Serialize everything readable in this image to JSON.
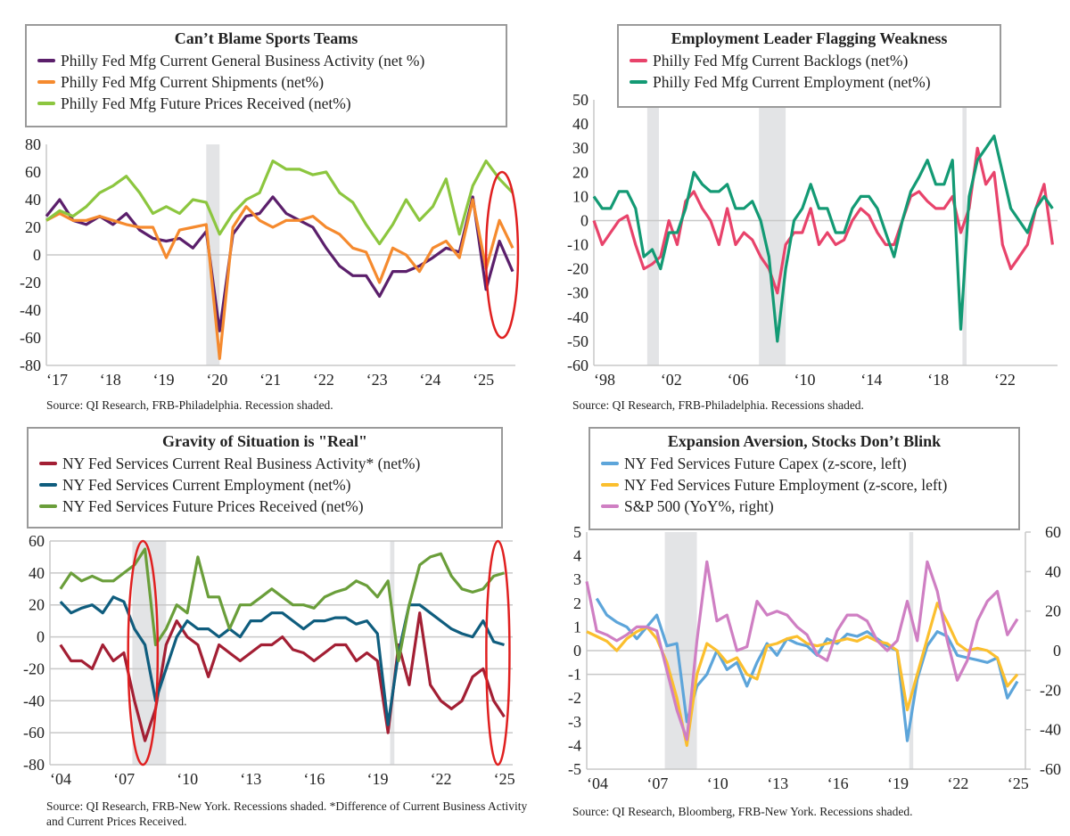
{
  "chart_data": [
    {
      "type": "line",
      "title": "Can’t Blame Sports Teams",
      "source": "Source: QI Research, FRB-Philadelphia. Recession shaded.",
      "ylim": [
        -80,
        80
      ],
      "yticks": [
        80,
        60,
        40,
        20,
        0,
        -20,
        -40,
        -60,
        -80
      ],
      "xticks": [
        {
          "v": 2017,
          "label": "‘17"
        },
        {
          "v": 2018,
          "label": "‘18"
        },
        {
          "v": 2019,
          "label": "‘19"
        },
        {
          "v": 2020,
          "label": "‘20"
        },
        {
          "v": 2021,
          "label": "‘21"
        },
        {
          "v": 2022,
          "label": "‘22"
        },
        {
          "v": 2023,
          "label": "‘23"
        },
        {
          "v": 2024,
          "label": "‘24"
        },
        {
          "v": 2025,
          "label": "‘25"
        }
      ],
      "xlim": [
        2017,
        2025.8
      ],
      "recessions": [
        [
          2020.0,
          2020.25
        ]
      ],
      "highlight_circles": [
        [
          2025.55,
          0,
          0.3,
          60
        ]
      ],
      "x_start": 2017,
      "x_step": 0.25,
      "series": [
        {
          "name": "Philly Fed Mfg Current General Business Activity (net %)",
          "color": "#5b1f6b",
          "values": [
            28,
            40,
            25,
            22,
            28,
            22,
            30,
            18,
            12,
            10,
            12,
            5,
            17,
            -55,
            15,
            28,
            30,
            42,
            30,
            25,
            20,
            5,
            -8,
            -15,
            -15,
            -30,
            -12,
            -12,
            -8,
            -2,
            5,
            2,
            42,
            -25,
            10,
            -12
          ]
        },
        {
          "name": "Philly Fed Mfg Current Shipments (net%)",
          "color": "#f58a2e",
          "values": [
            25,
            30,
            25,
            25,
            28,
            25,
            22,
            20,
            20,
            -2,
            18,
            20,
            22,
            -75,
            20,
            35,
            25,
            20,
            25,
            25,
            28,
            20,
            15,
            5,
            2,
            -20,
            5,
            0,
            -12,
            5,
            10,
            -2,
            40,
            -10,
            25,
            5
          ]
        },
        {
          "name": "Philly Fed Mfg Future Prices Received (net%)",
          "color": "#8cc63f",
          "values": [
            25,
            32,
            28,
            35,
            45,
            50,
            57,
            45,
            30,
            35,
            30,
            40,
            38,
            15,
            30,
            40,
            45,
            68,
            62,
            62,
            58,
            60,
            45,
            38,
            22,
            8,
            22,
            40,
            25,
            35,
            55,
            15,
            50,
            68,
            55,
            45
          ]
        }
      ]
    },
    {
      "type": "line",
      "title": "Employment Leader Flagging Weakness",
      "source": "Source: QI Research, FRB-Philadelphia. Recessions shaded.",
      "ylim": [
        -60,
        50
      ],
      "yticks": [
        50,
        40,
        30,
        20,
        10,
        0,
        -10,
        -20,
        -30,
        -40,
        -50,
        -60
      ],
      "xticks": [
        {
          "v": 1998,
          "label": "‘98"
        },
        {
          "v": 2002,
          "label": "‘02"
        },
        {
          "v": 2006,
          "label": "‘06"
        },
        {
          "v": 2010,
          "label": "‘10"
        },
        {
          "v": 2014,
          "label": "‘14"
        },
        {
          "v": 2018,
          "label": "‘18"
        },
        {
          "v": 2022,
          "label": "‘22"
        }
      ],
      "xlim": [
        1998,
        2025.8
      ],
      "recessions": [
        [
          2001.2,
          2001.9
        ],
        [
          2007.9,
          2009.5
        ],
        [
          2020.1,
          2020.35
        ]
      ],
      "highlight_circles": [],
      "x_start": 1998,
      "x_step": 0.5,
      "series": [
        {
          "name": "Philly Fed Mfg Current Backlogs (net%)",
          "color": "#e8436b",
          "values": [
            0,
            -10,
            -5,
            0,
            2,
            -10,
            -20,
            -18,
            -15,
            0,
            -10,
            8,
            12,
            5,
            0,
            -10,
            5,
            -10,
            -5,
            -8,
            -15,
            -20,
            -30,
            -10,
            -5,
            -5,
            5,
            -10,
            -5,
            -10,
            -8,
            0,
            5,
            2,
            -5,
            -10,
            -10,
            0,
            10,
            12,
            8,
            5,
            5,
            10,
            -5,
            5,
            30,
            15,
            20,
            -10,
            -20,
            -15,
            -10,
            5,
            15,
            -10
          ]
        },
        {
          "name": "Philly Fed Mfg Current Employment (net%)",
          "color": "#139a74",
          "values": [
            10,
            5,
            5,
            12,
            12,
            5,
            -15,
            -12,
            -20,
            -5,
            -5,
            5,
            20,
            15,
            12,
            12,
            15,
            5,
            5,
            8,
            0,
            -15,
            -50,
            -20,
            0,
            5,
            15,
            5,
            5,
            -5,
            -5,
            5,
            10,
            10,
            5,
            -5,
            -15,
            0,
            12,
            18,
            25,
            15,
            15,
            25,
            -45,
            10,
            25,
            30,
            35,
            20,
            5,
            0,
            -5,
            5,
            10,
            5
          ]
        }
      ]
    },
    {
      "type": "line",
      "title": "Gravity of Situation is \"Real\"",
      "source": "Source: QI Research, FRB-New York. Recessions shaded. *Difference of Current Business Activity and Current Prices Received.",
      "ylim": [
        -80,
        60
      ],
      "yticks": [
        60,
        40,
        20,
        0,
        -20,
        -40,
        -60,
        -80
      ],
      "xticks": [
        {
          "v": 2004,
          "label": "‘04"
        },
        {
          "v": 2007,
          "label": "‘07"
        },
        {
          "v": 2010,
          "label": "‘10"
        },
        {
          "v": 2013,
          "label": "‘13"
        },
        {
          "v": 2016,
          "label": "‘16"
        },
        {
          "v": 2019,
          "label": "‘19"
        },
        {
          "v": 2022,
          "label": "‘22"
        },
        {
          "v": 2025,
          "label": "‘25"
        }
      ],
      "xlim": [
        2004,
        2025.9
      ],
      "recessions": [
        [
          2007.9,
          2009.5
        ],
        [
          2020.1,
          2020.3
        ]
      ],
      "highlight_circles": [
        [
          2008.4,
          -10,
          0.7,
          70
        ],
        [
          2025.2,
          -10,
          0.55,
          70
        ]
      ],
      "x_start": 2004.5,
      "x_step": 0.5,
      "series": [
        {
          "name": "NY Fed Services Current Real Business Activity* (net%)",
          "color": "#a31f34",
          "values": [
            -5,
            -15,
            -15,
            -20,
            -5,
            -15,
            -10,
            -40,
            -65,
            -45,
            -5,
            10,
            0,
            -5,
            -25,
            -5,
            -10,
            -15,
            -10,
            -5,
            -5,
            0,
            -8,
            -10,
            -15,
            -10,
            -5,
            -5,
            -15,
            -10,
            -15,
            -60,
            -5,
            -30,
            15,
            -30,
            -40,
            -45,
            -40,
            -25,
            -20,
            -40,
            -50
          ]
        },
        {
          "name": "NY Fed Services Current Employment (net%)",
          "color": "#0f5d7e",
          "values": [
            22,
            15,
            18,
            20,
            15,
            25,
            22,
            5,
            -5,
            -40,
            -20,
            0,
            10,
            5,
            5,
            0,
            5,
            0,
            10,
            10,
            15,
            15,
            10,
            5,
            10,
            10,
            12,
            12,
            8,
            10,
            2,
            -55,
            -10,
            20,
            20,
            15,
            10,
            5,
            2,
            0,
            10,
            -3,
            -5
          ]
        },
        {
          "name": "NY Fed Services Future Prices Received (net%)",
          "color": "#6a9e3a",
          "values": [
            30,
            40,
            35,
            38,
            35,
            35,
            40,
            45,
            55,
            -5,
            5,
            20,
            15,
            50,
            25,
            25,
            5,
            20,
            20,
            25,
            30,
            25,
            20,
            20,
            18,
            25,
            28,
            30,
            35,
            32,
            25,
            35,
            -15,
            20,
            45,
            50,
            52,
            38,
            30,
            28,
            30,
            38,
            40
          ]
        }
      ]
    },
    {
      "type": "line",
      "title": "Expansion Aversion, Stocks Don’t Blink",
      "source": "Source: QI Research, Bloomberg, FRB-New York. Recessions shaded.",
      "ylim": [
        -5,
        5
      ],
      "y2lim": [
        -60,
        60
      ],
      "yticks": [
        5,
        4,
        3,
        2,
        1,
        0,
        -1,
        -2,
        -3,
        -4,
        -5
      ],
      "y2ticks": [
        60,
        40,
        20,
        0,
        -20,
        -40,
        -60
      ],
      "xticks": [
        {
          "v": 2004,
          "label": "‘04"
        },
        {
          "v": 2007,
          "label": "‘07"
        },
        {
          "v": 2010,
          "label": "‘10"
        },
        {
          "v": 2013,
          "label": "‘13"
        },
        {
          "v": 2016,
          "label": "‘16"
        },
        {
          "v": 2019,
          "label": "‘19"
        },
        {
          "v": 2022,
          "label": "‘22"
        },
        {
          "v": 2025,
          "label": "‘25"
        }
      ],
      "xlim": [
        2004,
        2025.9
      ],
      "recessions": [
        [
          2007.9,
          2009.5
        ],
        [
          2020.1,
          2020.3
        ]
      ],
      "highlight_circles": [],
      "x_start": 2004,
      "x_step": 0.5,
      "series": [
        {
          "name": "NY Fed Services Future Capex (z-score, left)",
          "color": "#5da5da",
          "axis": "left",
          "values": [
            null,
            2.2,
            1.5,
            1.2,
            1.0,
            0.5,
            1.0,
            1.5,
            0.2,
            0.3,
            -3.0,
            -1.5,
            -1.0,
            0.0,
            -0.8,
            -0.5,
            -1.5,
            -0.5,
            0.3,
            -0.2,
            0.5,
            0.3,
            0.2,
            -0.2,
            0.5,
            0.3,
            0.7,
            0.6,
            0.8,
            0.5,
            0.2,
            0.0,
            -3.8,
            -1.2,
            0.2,
            0.8,
            0.6,
            -0.2,
            -0.3,
            -0.4,
            -0.5,
            -0.3,
            -2.0,
            -1.3
          ]
        },
        {
          "name": "NY Fed Services Future Employment (z-score, left)",
          "color": "#fbbf2e",
          "axis": "left",
          "values": [
            0.8,
            0.6,
            0.4,
            0.0,
            0.5,
            0.8,
            1.0,
            0.5,
            -0.5,
            -2.0,
            -4.0,
            -1.0,
            0.3,
            0.0,
            -0.5,
            -0.3,
            -1.0,
            -1.2,
            0.2,
            0.3,
            0.5,
            0.6,
            0.3,
            0.2,
            0.3,
            0.4,
            0.5,
            0.4,
            0.6,
            0.4,
            0.3,
            0.0,
            -2.5,
            -1.0,
            0.5,
            2.0,
            1.2,
            0.3,
            0.0,
            0.1,
            0.0,
            -0.3,
            -1.5,
            -1.0
          ]
        },
        {
          "name": "S&P 500 (YoY%, right)",
          "color": "#cf7fc3",
          "axis": "right",
          "values": [
            35,
            10,
            8,
            5,
            8,
            12,
            12,
            10,
            -10,
            -30,
            -45,
            5,
            45,
            15,
            18,
            0,
            2,
            25,
            18,
            20,
            18,
            12,
            8,
            -2,
            -5,
            10,
            18,
            18,
            15,
            5,
            0,
            5,
            25,
            5,
            45,
            30,
            5,
            -15,
            -5,
            15,
            25,
            30,
            8,
            16
          ]
        }
      ]
    }
  ]
}
